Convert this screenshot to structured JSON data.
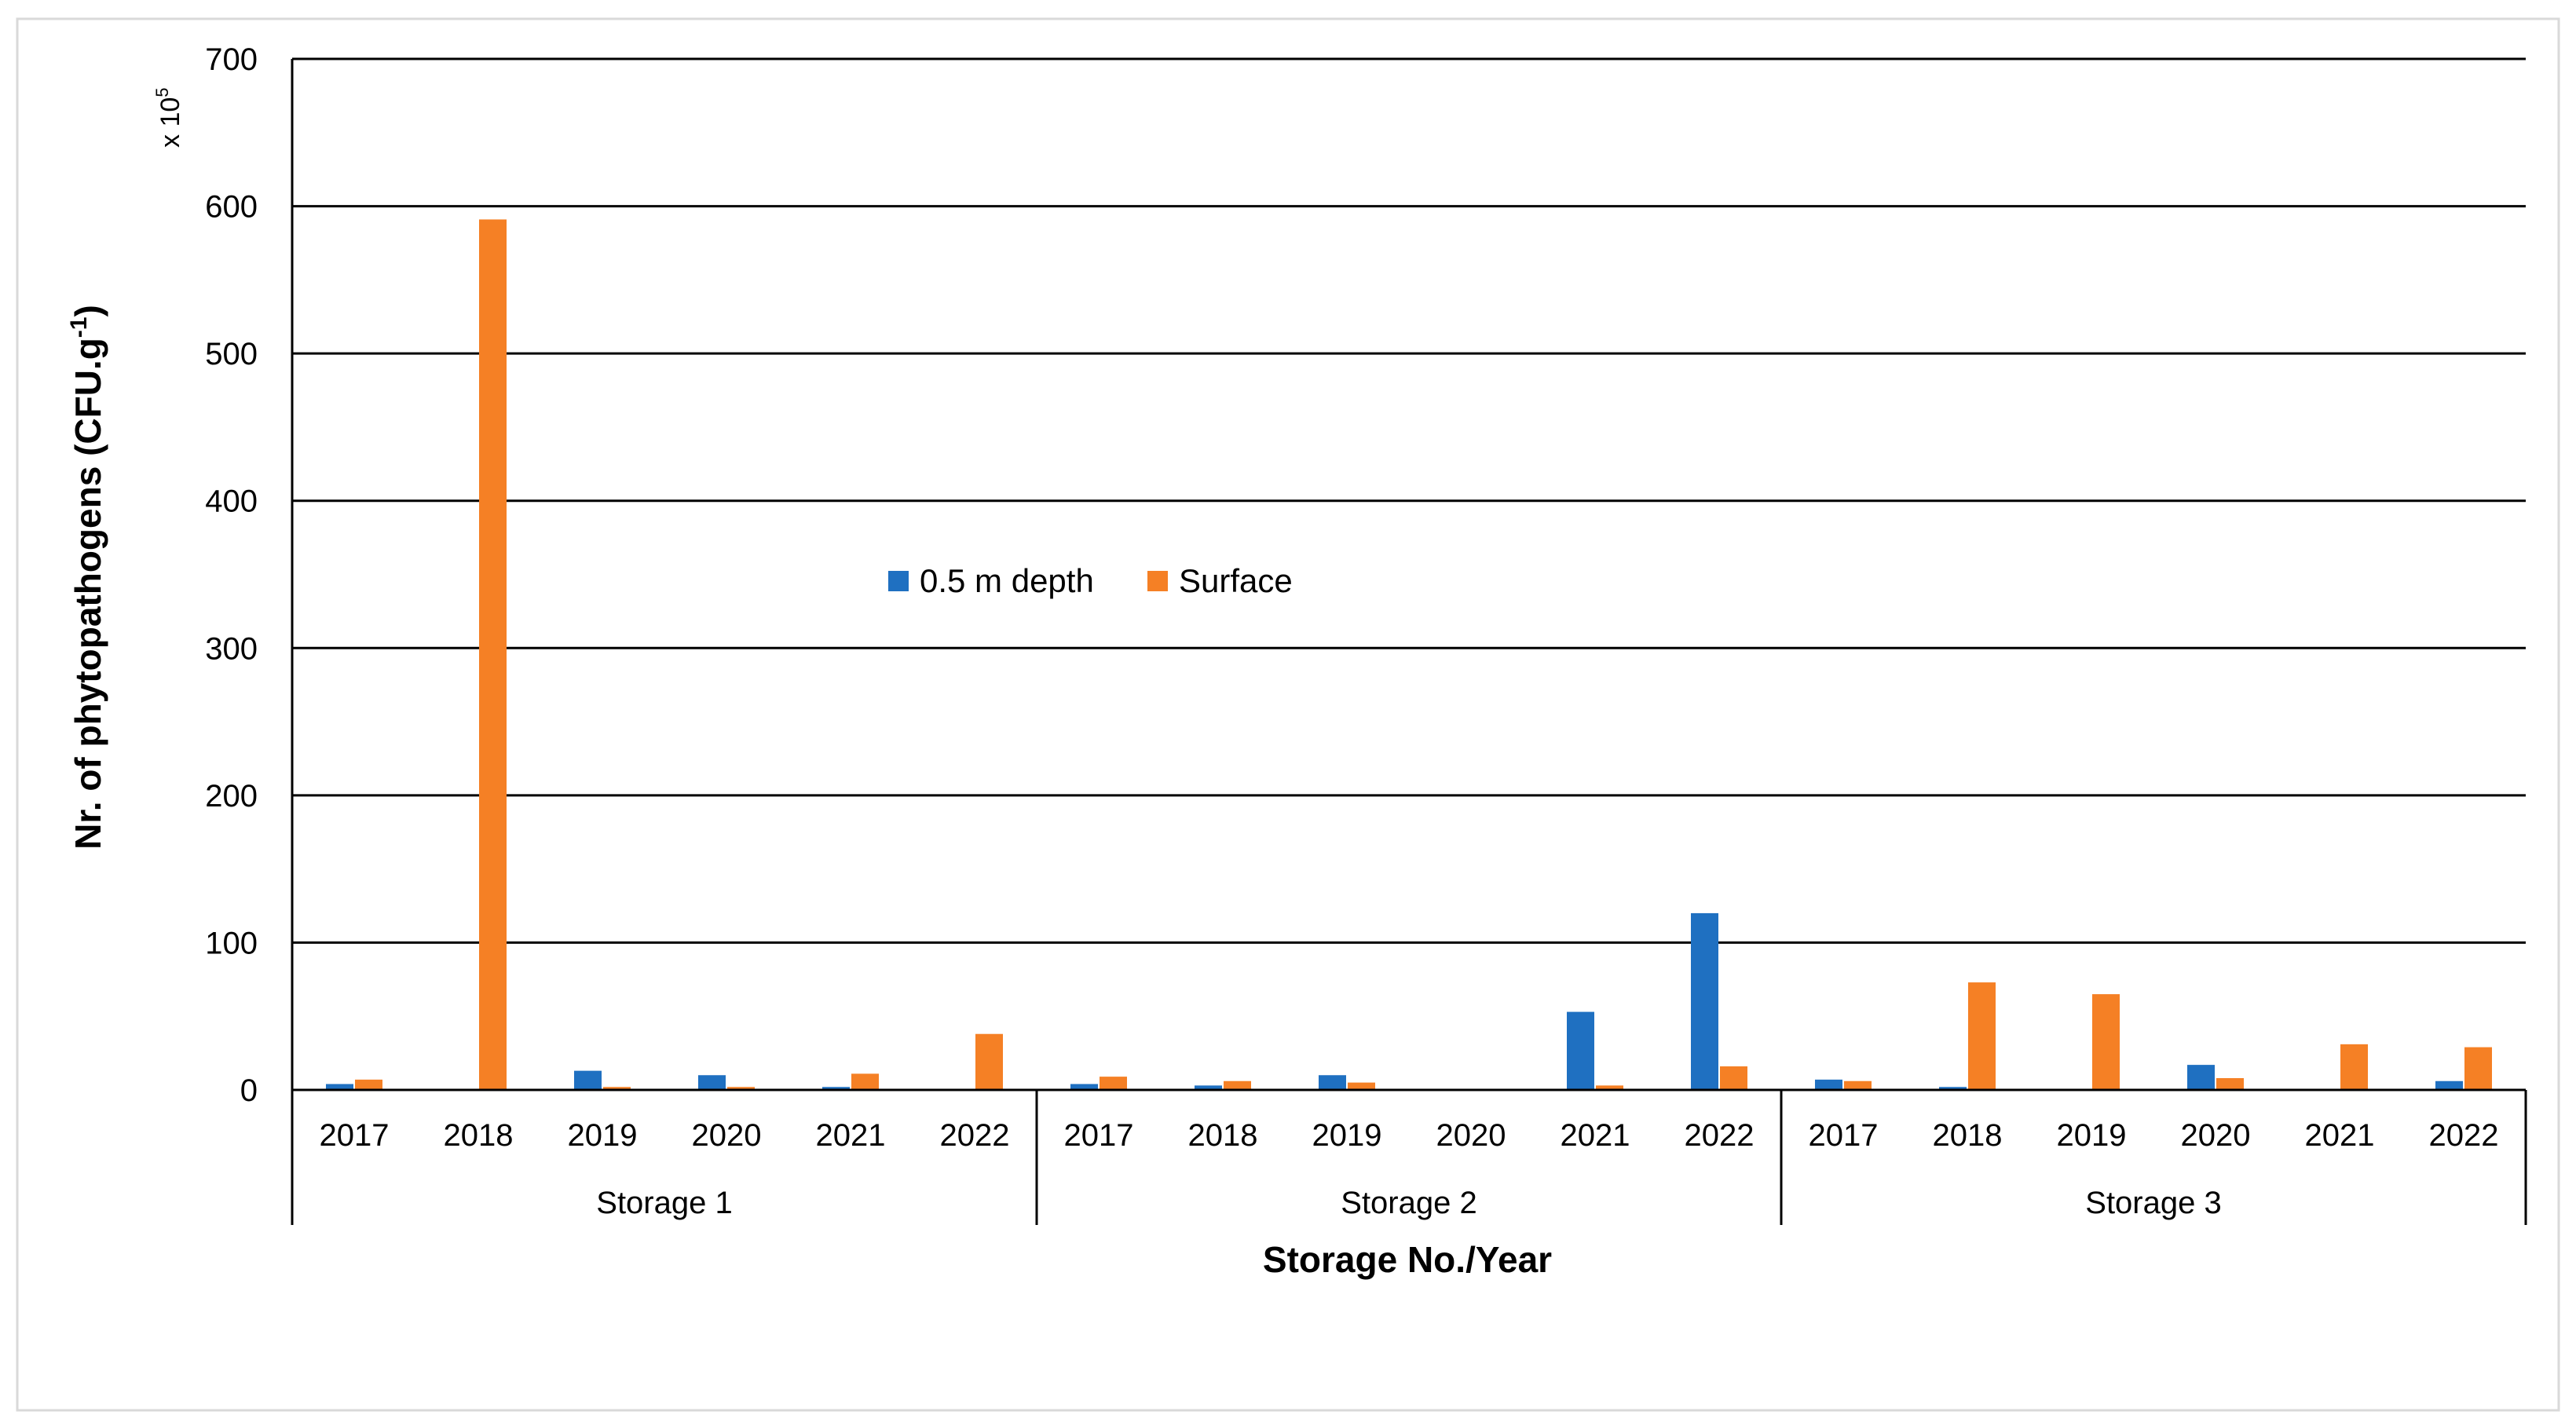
{
  "chart_data": {
    "type": "bar",
    "xlabel": "Storage No./Year",
    "ylabel": "Nr. of phytopathogens (CFU.g",
    "ylabel_sup": "-1",
    "ylabel_close": ")",
    "multiplier_prefix": "x 10",
    "multiplier_exp": "5",
    "ylim": [
      0,
      700
    ],
    "yticks": [
      0,
      100,
      200,
      300,
      400,
      500,
      600,
      700
    ],
    "grid": true,
    "legend_position": "center-left",
    "groups": [
      {
        "label": "Storage 1",
        "categories": [
          "2017",
          "2018",
          "2019",
          "2020",
          "2021",
          "2022"
        ]
      },
      {
        "label": "Storage 2",
        "categories": [
          "2017",
          "2018",
          "2019",
          "2020",
          "2021",
          "2022"
        ]
      },
      {
        "label": "Storage 3",
        "categories": [
          "2017",
          "2018",
          "2019",
          "2020",
          "2021",
          "2022"
        ]
      }
    ],
    "series": [
      {
        "name": "0.5 m depth",
        "color": "#1f70c1",
        "values": [
          4,
          0,
          13,
          10,
          2,
          0,
          4,
          3,
          10,
          0,
          53,
          120,
          7,
          2,
          0,
          17,
          0,
          6
        ]
      },
      {
        "name": "Surface",
        "color": "#f58025",
        "values": [
          7,
          591,
          2,
          2,
          11,
          38,
          9,
          6,
          5,
          0,
          3,
          16,
          6,
          73,
          65,
          8,
          31,
          29
        ]
      }
    ]
  }
}
